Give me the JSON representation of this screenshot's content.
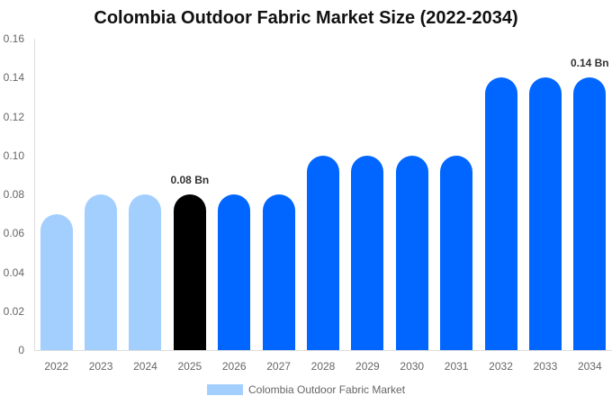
{
  "chart_data": {
    "type": "bar",
    "title": "Colombia Outdoor Fabric Market Size (2022-2034)",
    "xlabel": "",
    "ylabel": "",
    "ylim": [
      0,
      0.16
    ],
    "yticks": [
      "0",
      "0.02",
      "0.04",
      "0.06",
      "0.08",
      "0.10",
      "0.12",
      "0.14",
      "0.16"
    ],
    "categories": [
      "2022",
      "2023",
      "2024",
      "2025",
      "2026",
      "2027",
      "2028",
      "2029",
      "2030",
      "2031",
      "2032",
      "2033",
      "2034"
    ],
    "series": [
      {
        "name": "Colombia Outdoor Fabric Market",
        "values": [
          0.07,
          0.08,
          0.08,
          0.08,
          0.08,
          0.08,
          0.1,
          0.1,
          0.1,
          0.1,
          0.14,
          0.14,
          0.14
        ]
      }
    ],
    "bar_colors": [
      "#a3cfff",
      "#a3cfff",
      "#a3cfff",
      "#000000",
      "#0066ff",
      "#0066ff",
      "#0066ff",
      "#0066ff",
      "#0066ff",
      "#0066ff",
      "#0066ff",
      "#0066ff",
      "#0066ff"
    ],
    "annotations": [
      {
        "category": "2025",
        "text": "0.08 Bn"
      },
      {
        "category": "2034",
        "text": "0.14 Bn"
      }
    ],
    "legend": {
      "position": "bottom",
      "label": "Colombia Outdoor Fabric Market",
      "color": "#a3cfff"
    },
    "grid": false
  }
}
